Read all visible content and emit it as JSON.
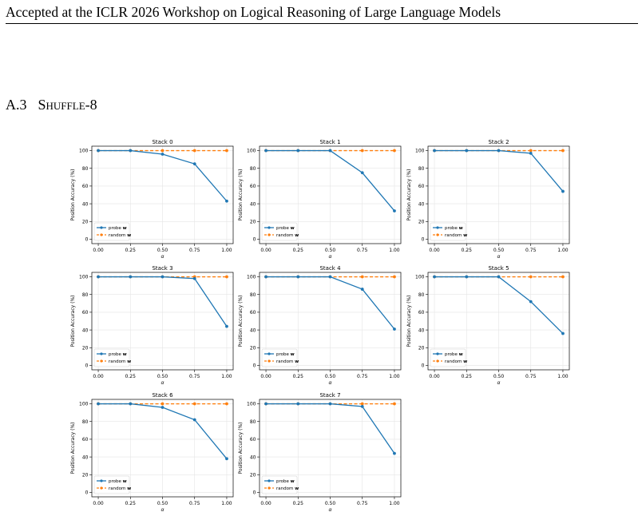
{
  "header": {
    "text": "Accepted at the ICLR 2026 Workshop on Logical Reasoning of Large Language Models"
  },
  "section": {
    "number": "A.3",
    "title": "Shuffle-8"
  },
  "figure": {
    "colors": {
      "probe": "#1f77b4",
      "random": "#ff7f0e"
    },
    "chart_data": [
      {
        "type": "line",
        "title": "Stack 0",
        "x": [
          0.0,
          0.25,
          0.5,
          0.75,
          1.0
        ],
        "xlabel": "α",
        "ylabel": "Position Accuracy (%)",
        "ylim": [
          0,
          100
        ],
        "xticks": [
          "0.00",
          "0.25",
          "0.50",
          "0.75",
          "1.00"
        ],
        "yticks": [
          "0",
          "20",
          "40",
          "60",
          "80",
          "100"
        ],
        "grid": true,
        "legend": "lower left",
        "series": [
          {
            "name": "probe w",
            "values": [
              100,
              100,
              96,
              85,
              43
            ]
          },
          {
            "name": "random w",
            "values": [
              100,
              100,
              100,
              100,
              100
            ]
          }
        ]
      },
      {
        "type": "line",
        "title": "Stack 1",
        "x": [
          0.0,
          0.25,
          0.5,
          0.75,
          1.0
        ],
        "xlabel": "α",
        "ylabel": "Position Accuracy (%)",
        "ylim": [
          0,
          100
        ],
        "xticks": [
          "0.00",
          "0.25",
          "0.50",
          "0.75",
          "1.00"
        ],
        "yticks": [
          "0",
          "20",
          "40",
          "60",
          "80",
          "100"
        ],
        "grid": true,
        "legend": "lower left",
        "series": [
          {
            "name": "probe w",
            "values": [
              100,
              100,
              100,
              75,
              32
            ]
          },
          {
            "name": "random w",
            "values": [
              100,
              100,
              100,
              100,
              100
            ]
          }
        ]
      },
      {
        "type": "line",
        "title": "Stack 2",
        "x": [
          0.0,
          0.25,
          0.5,
          0.75,
          1.0
        ],
        "xlabel": "α",
        "ylabel": "Position Accuracy (%)",
        "ylim": [
          0,
          100
        ],
        "xticks": [
          "0.00",
          "0.25",
          "0.50",
          "0.75",
          "1.00"
        ],
        "yticks": [
          "0",
          "20",
          "40",
          "60",
          "80",
          "100"
        ],
        "grid": true,
        "legend": "lower left",
        "series": [
          {
            "name": "probe w",
            "values": [
              100,
              100,
              100,
              97,
              54
            ]
          },
          {
            "name": "random w",
            "values": [
              100,
              100,
              100,
              100,
              100
            ]
          }
        ]
      },
      {
        "type": "line",
        "title": "Stack 3",
        "x": [
          0.0,
          0.25,
          0.5,
          0.75,
          1.0
        ],
        "xlabel": "α",
        "ylabel": "Position Accuracy (%)",
        "ylim": [
          0,
          100
        ],
        "xticks": [
          "0.00",
          "0.25",
          "0.50",
          "0.75",
          "1.00"
        ],
        "yticks": [
          "0",
          "20",
          "40",
          "60",
          "80",
          "100"
        ],
        "grid": true,
        "legend": "lower left",
        "series": [
          {
            "name": "probe w",
            "values": [
              100,
              100,
              100,
              98,
              44
            ]
          },
          {
            "name": "random w",
            "values": [
              100,
              100,
              100,
              100,
              100
            ]
          }
        ]
      },
      {
        "type": "line",
        "title": "Stack 4",
        "x": [
          0.0,
          0.25,
          0.5,
          0.75,
          1.0
        ],
        "xlabel": "α",
        "ylabel": "Position Accuracy (%)",
        "ylim": [
          0,
          100
        ],
        "xticks": [
          "0.00",
          "0.25",
          "0.50",
          "0.75",
          "1.00"
        ],
        "yticks": [
          "0",
          "20",
          "40",
          "60",
          "80",
          "100"
        ],
        "grid": true,
        "legend": "lower left",
        "series": [
          {
            "name": "probe w",
            "values": [
              100,
              100,
              100,
              86,
              41
            ]
          },
          {
            "name": "random w",
            "values": [
              100,
              100,
              100,
              100,
              100
            ]
          }
        ]
      },
      {
        "type": "line",
        "title": "Stack 5",
        "x": [
          0.0,
          0.25,
          0.5,
          0.75,
          1.0
        ],
        "xlabel": "α",
        "ylabel": "Position Accuracy (%)",
        "ylim": [
          0,
          100
        ],
        "xticks": [
          "0.00",
          "0.25",
          "0.50",
          "0.75",
          "1.00"
        ],
        "yticks": [
          "0",
          "20",
          "40",
          "60",
          "80",
          "100"
        ],
        "grid": true,
        "legend": "lower left",
        "series": [
          {
            "name": "probe w",
            "values": [
              100,
              100,
              100,
              72,
              36
            ]
          },
          {
            "name": "random w",
            "values": [
              100,
              100,
              100,
              100,
              100
            ]
          }
        ]
      },
      {
        "type": "line",
        "title": "Stack 6",
        "x": [
          0.0,
          0.25,
          0.5,
          0.75,
          1.0
        ],
        "xlabel": "α",
        "ylabel": "Position Accuracy (%)",
        "ylim": [
          0,
          100
        ],
        "xticks": [
          "0.00",
          "0.25",
          "0.50",
          "0.75",
          "1.00"
        ],
        "yticks": [
          "0",
          "20",
          "40",
          "60",
          "80",
          "100"
        ],
        "grid": true,
        "legend": "lower left",
        "series": [
          {
            "name": "probe w",
            "values": [
              100,
              100,
              96,
              82,
              38
            ]
          },
          {
            "name": "random w",
            "values": [
              100,
              100,
              100,
              100,
              100
            ]
          }
        ]
      },
      {
        "type": "line",
        "title": "Stack 7",
        "x": [
          0.0,
          0.25,
          0.5,
          0.75,
          1.0
        ],
        "xlabel": "α",
        "ylabel": "Position Accuracy (%)",
        "ylim": [
          0,
          100
        ],
        "xticks": [
          "0.00",
          "0.25",
          "0.50",
          "0.75",
          "1.00"
        ],
        "yticks": [
          "0",
          "20",
          "40",
          "60",
          "80",
          "100"
        ],
        "grid": true,
        "legend": "lower left",
        "series": [
          {
            "name": "probe w",
            "values": [
              100,
              100,
              100,
              97,
              44
            ]
          },
          {
            "name": "random w",
            "values": [
              100,
              100,
              100,
              100,
              100
            ]
          }
        ]
      }
    ]
  }
}
